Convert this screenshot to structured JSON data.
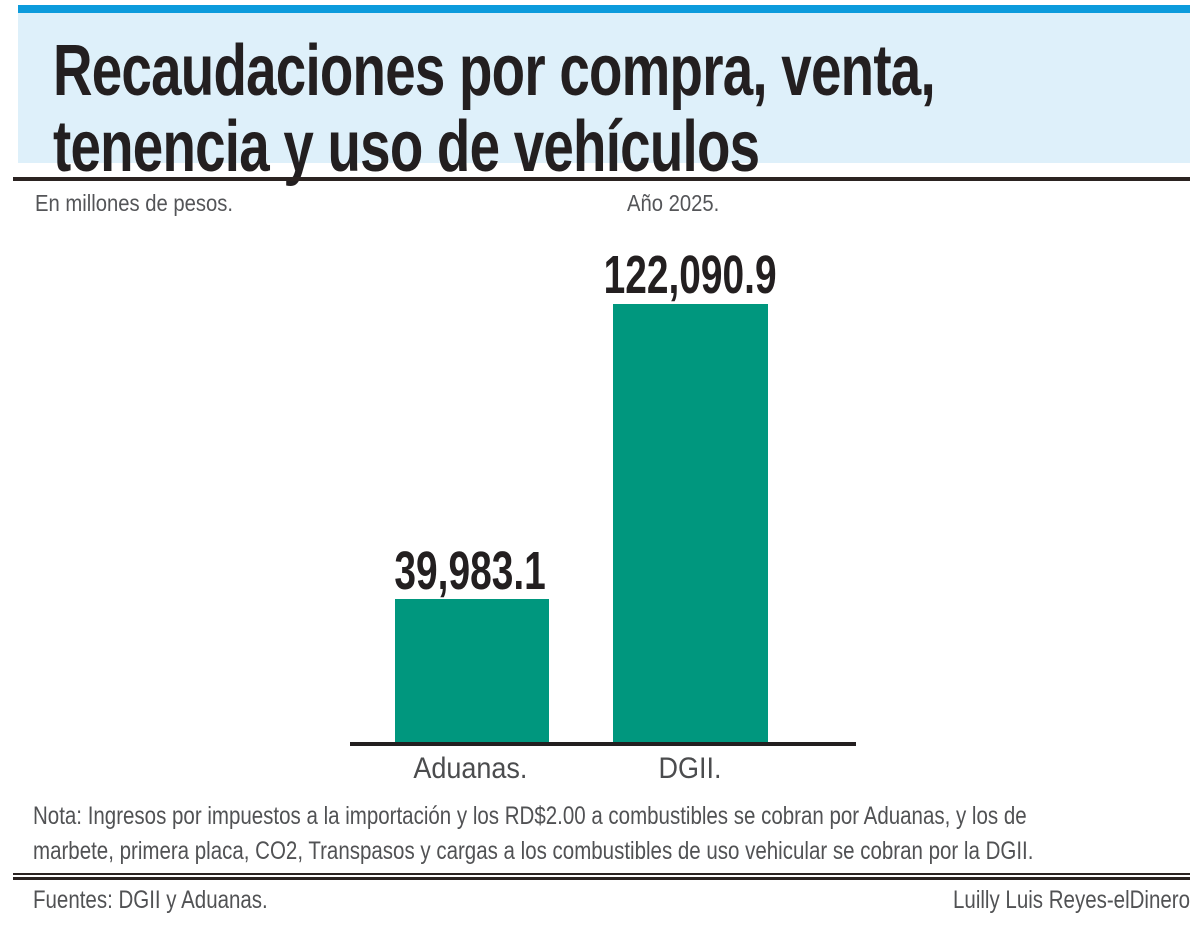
{
  "header": {
    "title_line1": "Recaudaciones por compra, venta,",
    "title_line2": "tenencia y uso de vehículos"
  },
  "subtitle": {
    "left": "En millones de pesos.",
    "right": "Año 2025."
  },
  "chart_data": {
    "type": "bar",
    "title": "Recaudaciones por compra, venta, tenencia y uso de vehículos",
    "unit_label": "En millones de pesos.",
    "year_label": "Año 2025.",
    "categories": [
      "Aduanas.",
      "DGII."
    ],
    "values": [
      39983.1,
      122090.9
    ],
    "value_labels": [
      "39,983.1",
      "122,090.9"
    ],
    "ylim": [
      0,
      122090.9
    ],
    "bar_color": "#00977e",
    "grid": false,
    "legend": false
  },
  "note": {
    "line1": "Nota: Ingresos por impuestos a la importación y los RD$2.00 a combustibles se cobran por Aduanas, y los de",
    "line2": "marbete, primera placa, CO2, Transpasos y cargas a los combustibles de uso vehicular se cobran por la DGII."
  },
  "footer": {
    "sources": "Fuentes: DGII y Aduanas.",
    "credit": "Luilly Luis Reyes-elDinero"
  },
  "colors": {
    "accent_blue": "#0c9bdc",
    "panel_blue": "#def0fa",
    "bar_green": "#00977e",
    "ink": "#231f20",
    "gray_text": "#545558"
  }
}
